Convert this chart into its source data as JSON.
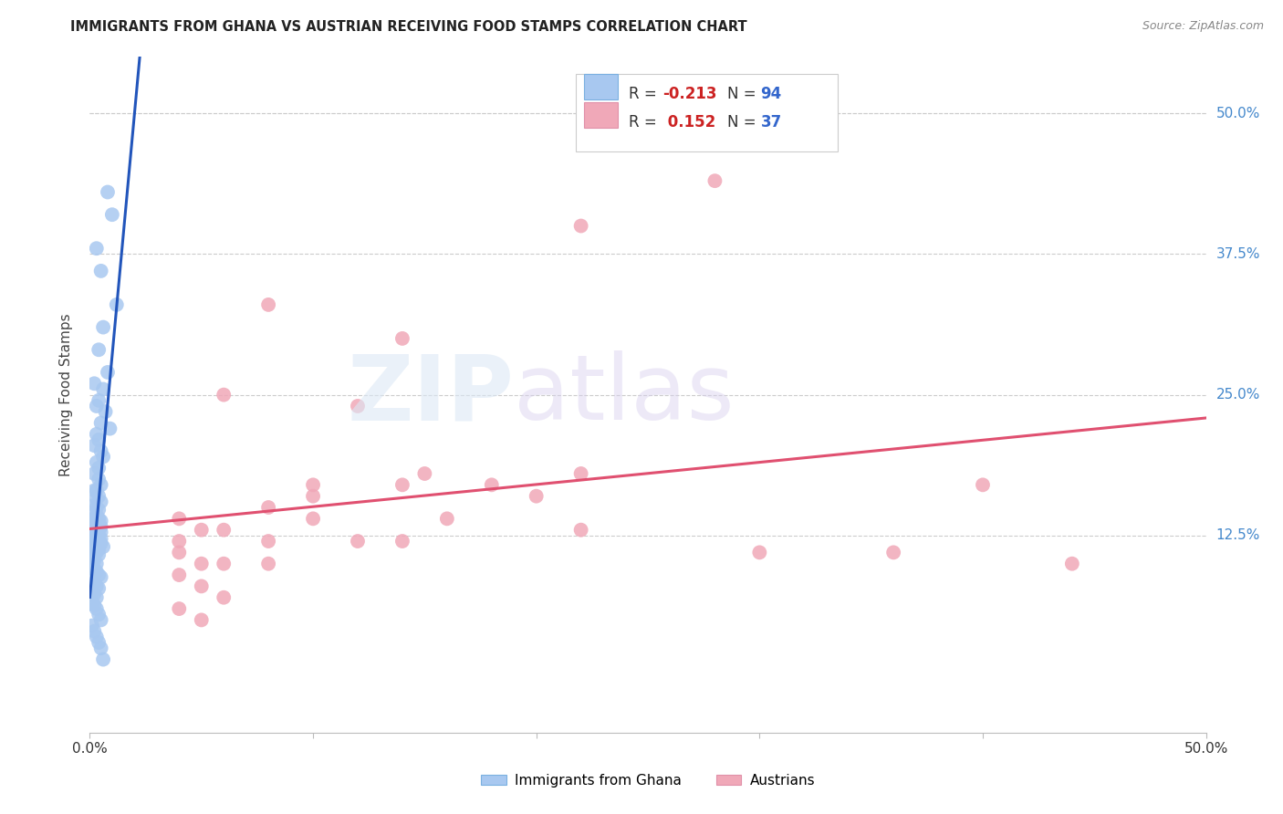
{
  "title": "IMMIGRANTS FROM GHANA VS AUSTRIAN RECEIVING FOOD STAMPS CORRELATION CHART",
  "source": "Source: ZipAtlas.com",
  "ylabel": "Receiving Food Stamps",
  "ytick_labels": [
    "50.0%",
    "37.5%",
    "25.0%",
    "12.5%"
  ],
  "ytick_values": [
    0.5,
    0.375,
    0.25,
    0.125
  ],
  "xlim": [
    0.0,
    0.5
  ],
  "ylim": [
    -0.05,
    0.55
  ],
  "legend_r_ghana": "-0.213",
  "legend_n_ghana": "94",
  "legend_r_austrian": "0.152",
  "legend_n_austrian": "37",
  "ghana_color": "#a8c8f0",
  "austrian_color": "#f0a8b8",
  "ghana_line_color": "#2255bb",
  "austrian_line_color": "#e05070",
  "ghana_line_dashed_color": "#aabbdd",
  "background_color": "#ffffff",
  "grid_color": "#cccccc",
  "ghana_x": [
    0.008,
    0.01,
    0.003,
    0.005,
    0.012,
    0.006,
    0.004,
    0.008,
    0.002,
    0.006,
    0.004,
    0.003,
    0.007,
    0.005,
    0.009,
    0.003,
    0.004,
    0.002,
    0.005,
    0.006,
    0.003,
    0.004,
    0.002,
    0.004,
    0.005,
    0.003,
    0.002,
    0.004,
    0.003,
    0.005,
    0.002,
    0.003,
    0.004,
    0.002,
    0.003,
    0.004,
    0.005,
    0.002,
    0.003,
    0.004,
    0.005,
    0.002,
    0.003,
    0.004,
    0.005,
    0.006,
    0.002,
    0.003,
    0.004,
    0.005,
    0.001,
    0.002,
    0.003,
    0.004,
    0.002,
    0.003,
    0.004,
    0.005,
    0.001,
    0.002,
    0.003,
    0.001,
    0.002,
    0.003,
    0.001,
    0.002,
    0.003,
    0.004,
    0.001,
    0.002,
    0.003,
    0.001,
    0.002,
    0.003,
    0.004,
    0.005,
    0.001,
    0.002,
    0.003,
    0.004,
    0.001,
    0.002,
    0.003,
    0.001,
    0.002,
    0.003,
    0.004,
    0.005,
    0.001,
    0.002,
    0.003,
    0.004,
    0.005,
    0.006
  ],
  "ghana_y": [
    0.43,
    0.41,
    0.38,
    0.36,
    0.33,
    0.31,
    0.29,
    0.27,
    0.26,
    0.255,
    0.245,
    0.24,
    0.235,
    0.225,
    0.22,
    0.215,
    0.21,
    0.205,
    0.2,
    0.195,
    0.19,
    0.185,
    0.18,
    0.175,
    0.17,
    0.165,
    0.165,
    0.16,
    0.158,
    0.155,
    0.152,
    0.15,
    0.148,
    0.145,
    0.143,
    0.14,
    0.138,
    0.135,
    0.133,
    0.13,
    0.128,
    0.125,
    0.123,
    0.12,
    0.118,
    0.115,
    0.13,
    0.128,
    0.125,
    0.122,
    0.12,
    0.118,
    0.115,
    0.113,
    0.14,
    0.138,
    0.135,
    0.133,
    0.13,
    0.128,
    0.125,
    0.122,
    0.12,
    0.118,
    0.115,
    0.113,
    0.11,
    0.108,
    0.105,
    0.103,
    0.1,
    0.098,
    0.095,
    0.093,
    0.09,
    0.088,
    0.085,
    0.083,
    0.08,
    0.078,
    0.075,
    0.073,
    0.07,
    0.065,
    0.063,
    0.06,
    0.055,
    0.05,
    0.045,
    0.04,
    0.035,
    0.03,
    0.025,
    0.015
  ],
  "austrian_x": [
    0.28,
    0.22,
    0.08,
    0.14,
    0.12,
    0.15,
    0.1,
    0.18,
    0.2,
    0.06,
    0.08,
    0.1,
    0.04,
    0.05,
    0.04,
    0.06,
    0.08,
    0.1,
    0.12,
    0.14,
    0.04,
    0.05,
    0.06,
    0.08,
    0.04,
    0.05,
    0.06,
    0.04,
    0.05,
    0.22,
    0.14,
    0.16,
    0.22,
    0.3,
    0.36,
    0.4,
    0.44
  ],
  "austrian_y": [
    0.44,
    0.4,
    0.33,
    0.3,
    0.24,
    0.18,
    0.17,
    0.17,
    0.16,
    0.25,
    0.15,
    0.14,
    0.14,
    0.13,
    0.12,
    0.13,
    0.12,
    0.16,
    0.12,
    0.12,
    0.11,
    0.1,
    0.1,
    0.1,
    0.09,
    0.08,
    0.07,
    0.06,
    0.05,
    0.18,
    0.17,
    0.14,
    0.13,
    0.11,
    0.11,
    0.17,
    0.1
  ]
}
